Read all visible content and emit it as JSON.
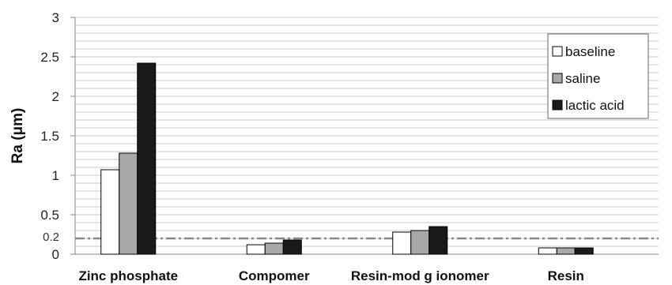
{
  "chart_data": {
    "type": "bar",
    "ylabel": "Ra (μm)",
    "ylim": [
      0,
      3
    ],
    "yticks": [
      0,
      0.5,
      1,
      1.5,
      2,
      2.5,
      3
    ],
    "ytick_labels": [
      "0",
      "0.5",
      "1",
      "1.5",
      "2",
      "2.5",
      "3"
    ],
    "grid_step": 0.1,
    "grid": true,
    "categories": [
      "Zinc phosphate",
      "Compomer",
      "Resin-mod g ionomer",
      "Resin"
    ],
    "series": [
      {
        "name": "baseline",
        "color": "#ffffff",
        "values": [
          1.07,
          0.12,
          0.28,
          0.08
        ]
      },
      {
        "name": "saline",
        "color": "#a8a8a8",
        "values": [
          1.28,
          0.14,
          0.3,
          0.08
        ]
      },
      {
        "name": "lactic acid",
        "color": "#1a1a1a",
        "values": [
          2.42,
          0.18,
          0.35,
          0.08
        ]
      }
    ],
    "reference_line": {
      "value": 0.2,
      "label": "0.2",
      "style": "dash-dot",
      "color": "#888888"
    },
    "legend_position": "top-right"
  }
}
